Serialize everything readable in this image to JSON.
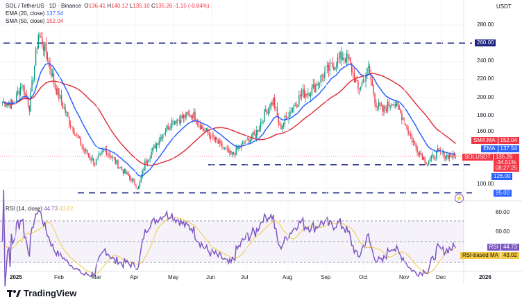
{
  "header": {
    "symbol": "SOL / TetherUS · 1D · Binance",
    "o_label": "O",
    "open": "136.41",
    "h_label": "H",
    "high": "140.12",
    "l_label": "L",
    "low": "135.10",
    "c_label": "C",
    "close": "135.26",
    "change": "-1.15 (-0.84%)",
    "ema_label": "EMA (20, close)",
    "ema_value": "137.54",
    "sma_label": "SMA (50, close)",
    "sma_value": "152.04"
  },
  "price_axis": {
    "currency": "USDT",
    "ticks": [
      "280.00",
      "240.00",
      "220.00",
      "200.00",
      "180.00",
      "160.00",
      "100.00"
    ],
    "tags": {
      "sma_label": "SMA:MA",
      "sma": "152.04",
      "ema_label": "EMA",
      "ema": "137.54",
      "sym_label": "SOLUSDT",
      "price": "135.26",
      "pct": "-34.51%",
      "countdown": "08:27:25",
      "level1": "260.00",
      "level2": "126.00",
      "level3": "95.00"
    }
  },
  "rsi": {
    "label": "RSI (14, close)",
    "value": "44.73",
    "ma_value": "43.02",
    "ticks": [
      "80.00",
      "60.00"
    ],
    "tag_rsi": "RSI",
    "tag_ma": "RSI-based MA"
  },
  "time_axis": [
    "2025",
    "Feb",
    "Mar",
    "Apr",
    "May",
    "Jun",
    "Jul",
    "Aug",
    "Sep",
    "Oct",
    "Nov",
    "Dec",
    "2026"
  ],
  "colors": {
    "up": "#089981",
    "down": "#f23645",
    "ema": "#2962ff",
    "sma": "#e0343e",
    "rsi": "#7e57c2",
    "rsi_ma": "#f5c842",
    "levels": "#1a237e"
  },
  "footer": {
    "brand": "TradingView"
  },
  "chart_data": {
    "type": "candlestick",
    "note_levels": [
      260,
      126,
      95
    ],
    "ylim": [
      90,
      290
    ],
    "approx_closes": [
      [
        "2024-12-22",
        195
      ],
      [
        "2024-12-30",
        192
      ],
      [
        "2025-01-06",
        215
      ],
      [
        "2025-01-12",
        190
      ],
      [
        "2025-01-19",
        270
      ],
      [
        "2025-01-25",
        250
      ],
      [
        "2025-02-01",
        212
      ],
      [
        "2025-02-12",
        174
      ],
      [
        "2025-02-23",
        143
      ],
      [
        "2025-03-04",
        128
      ],
      [
        "2025-03-12",
        143
      ],
      [
        "2025-03-23",
        124
      ],
      [
        "2025-04-03",
        107
      ],
      [
        "2025-04-07",
        100
      ],
      [
        "2025-04-12",
        128
      ],
      [
        "2025-04-25",
        159
      ],
      [
        "2025-05-03",
        174
      ],
      [
        "2025-05-19",
        182
      ],
      [
        "2025-05-27",
        166
      ],
      [
        "2025-06-07",
        151
      ],
      [
        "2025-06-18",
        136
      ],
      [
        "2025-06-29",
        151
      ],
      [
        "2025-07-07",
        159
      ],
      [
        "2025-07-15",
        185
      ],
      [
        "2025-07-21",
        197
      ],
      [
        "2025-07-26",
        166
      ],
      [
        "2025-08-03",
        185
      ],
      [
        "2025-08-12",
        204
      ],
      [
        "2025-08-20",
        208
      ],
      [
        "2025-08-28",
        224
      ],
      [
        "2025-09-05",
        235
      ],
      [
        "2025-09-13",
        246
      ],
      [
        "2025-09-18",
        240
      ],
      [
        "2025-09-25",
        208
      ],
      [
        "2025-10-03",
        231
      ],
      [
        "2025-10-09",
        193
      ],
      [
        "2025-10-14",
        185
      ],
      [
        "2025-10-22",
        197
      ],
      [
        "2025-10-30",
        178
      ],
      [
        "2025-11-04",
        159
      ],
      [
        "2025-11-10",
        143
      ],
      [
        "2025-11-18",
        128
      ],
      [
        "2025-11-26",
        140
      ],
      [
        "2025-12-02",
        136
      ],
      [
        "2025-12-10",
        135.26
      ]
    ],
    "rsi_range": [
      0,
      100
    ],
    "rsi_bands": [
      70,
      50,
      30
    ]
  }
}
